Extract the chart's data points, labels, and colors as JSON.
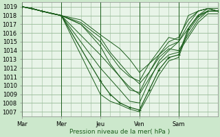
{
  "bg_color": "#cce8cc",
  "plot_bg_color": "#e8f4e8",
  "grid_color": "#99bb99",
  "line_color": "#1a5c1a",
  "ylabel_values": [
    1007,
    1008,
    1009,
    1010,
    1011,
    1012,
    1013,
    1014,
    1015,
    1016,
    1017,
    1018,
    1019
  ],
  "ylim": [
    1006.5,
    1019.5
  ],
  "xlabel": "Pression niveau de la mer( hPa )",
  "day_labels": [
    "Mar",
    "Mer",
    "Jeu",
    "Ven",
    "Sam"
  ],
  "day_positions": [
    0,
    24,
    48,
    72,
    96
  ],
  "total_hours": 120,
  "tick_fontsize": 6.0,
  "series": [
    {
      "points": [
        [
          0,
          1019.0
        ],
        [
          6,
          1018.8
        ],
        [
          12,
          1018.5
        ],
        [
          18,
          1018.2
        ],
        [
          24,
          1018.0
        ],
        [
          30,
          1017.5
        ],
        [
          36,
          1017.0
        ],
        [
          42,
          1016.0
        ],
        [
          48,
          1015.0
        ],
        [
          54,
          1013.5
        ],
        [
          60,
          1012.0
        ],
        [
          66,
          1011.0
        ],
        [
          72,
          1010.5
        ],
        [
          78,
          1012.5
        ],
        [
          84,
          1014.0
        ],
        [
          90,
          1015.5
        ],
        [
          96,
          1015.2
        ],
        [
          102,
          1018.0
        ],
        [
          108,
          1018.5
        ],
        [
          114,
          1018.8
        ],
        [
          120,
          1018.5
        ]
      ],
      "lw": 0.7,
      "marker": false
    },
    {
      "points": [
        [
          0,
          1019.0
        ],
        [
          6,
          1018.8
        ],
        [
          12,
          1018.5
        ],
        [
          24,
          1018.0
        ],
        [
          48,
          1013.5
        ],
        [
          60,
          1011.0
        ],
        [
          66,
          1009.5
        ],
        [
          72,
          1009.2
        ],
        [
          78,
          1011.5
        ],
        [
          84,
          1013.5
        ],
        [
          90,
          1015.0
        ],
        [
          96,
          1015.5
        ],
        [
          102,
          1017.5
        ],
        [
          108,
          1018.5
        ],
        [
          114,
          1018.8
        ],
        [
          120,
          1018.5
        ]
      ],
      "lw": 0.7,
      "marker": false
    },
    {
      "points": [
        [
          0,
          1019.0
        ],
        [
          6,
          1018.8
        ],
        [
          12,
          1018.5
        ],
        [
          24,
          1018.0
        ],
        [
          48,
          1012.0
        ],
        [
          60,
          1009.5
        ],
        [
          66,
          1008.2
        ],
        [
          72,
          1008.0
        ],
        [
          78,
          1010.5
        ],
        [
          84,
          1012.8
        ],
        [
          90,
          1014.0
        ],
        [
          96,
          1015.0
        ],
        [
          102,
          1017.0
        ],
        [
          108,
          1018.5
        ],
        [
          114,
          1018.8
        ],
        [
          120,
          1018.5
        ]
      ],
      "lw": 0.7,
      "marker": false
    },
    {
      "points": [
        [
          0,
          1019.0
        ],
        [
          6,
          1018.8
        ],
        [
          12,
          1018.5
        ],
        [
          24,
          1018.0
        ],
        [
          48,
          1010.5
        ],
        [
          54,
          1009.0
        ],
        [
          60,
          1008.0
        ],
        [
          66,
          1007.5
        ],
        [
          72,
          1007.2
        ],
        [
          78,
          1009.5
        ],
        [
          84,
          1011.8
        ],
        [
          90,
          1013.2
        ],
        [
          96,
          1013.5
        ],
        [
          102,
          1016.5
        ],
        [
          108,
          1018.0
        ],
        [
          114,
          1018.5
        ],
        [
          120,
          1018.5
        ]
      ],
      "lw": 0.9,
      "marker": true
    },
    {
      "points": [
        [
          0,
          1019.0
        ],
        [
          6,
          1018.8
        ],
        [
          12,
          1018.5
        ],
        [
          24,
          1018.0
        ],
        [
          48,
          1009.0
        ],
        [
          54,
          1008.2
        ],
        [
          60,
          1007.8
        ],
        [
          66,
          1007.3
        ],
        [
          72,
          1007.0
        ],
        [
          78,
          1009.0
        ],
        [
          84,
          1011.2
        ],
        [
          90,
          1012.8
        ],
        [
          96,
          1013.2
        ],
        [
          102,
          1016.2
        ],
        [
          108,
          1017.8
        ],
        [
          114,
          1018.5
        ],
        [
          120,
          1018.5
        ]
      ],
      "lw": 0.7,
      "marker": false
    },
    {
      "points": [
        [
          0,
          1019.0
        ],
        [
          6,
          1018.8
        ],
        [
          12,
          1018.5
        ],
        [
          24,
          1018.0
        ],
        [
          36,
          1017.0
        ],
        [
          48,
          1014.5
        ],
        [
          54,
          1012.5
        ],
        [
          60,
          1011.0
        ],
        [
          66,
          1009.8
        ],
        [
          72,
          1009.0
        ],
        [
          78,
          1010.8
        ],
        [
          84,
          1012.5
        ],
        [
          90,
          1013.5
        ],
        [
          96,
          1013.8
        ],
        [
          102,
          1015.5
        ],
        [
          108,
          1017.2
        ],
        [
          114,
          1018.2
        ],
        [
          120,
          1018.2
        ]
      ],
      "lw": 0.7,
      "marker": false
    },
    {
      "points": [
        [
          0,
          1019.0
        ],
        [
          6,
          1018.8
        ],
        [
          12,
          1018.5
        ],
        [
          24,
          1018.0
        ],
        [
          36,
          1017.2
        ],
        [
          48,
          1015.5
        ],
        [
          54,
          1013.8
        ],
        [
          60,
          1012.5
        ],
        [
          66,
          1011.2
        ],
        [
          72,
          1010.2
        ],
        [
          78,
          1011.5
        ],
        [
          84,
          1013.2
        ],
        [
          90,
          1014.2
        ],
        [
          96,
          1014.0
        ],
        [
          102,
          1015.8
        ],
        [
          108,
          1017.5
        ],
        [
          114,
          1018.5
        ],
        [
          120,
          1018.5
        ]
      ],
      "lw": 0.7,
      "marker": false
    },
    {
      "points": [
        [
          0,
          1019.0
        ],
        [
          12,
          1018.5
        ],
        [
          24,
          1018.0
        ],
        [
          36,
          1017.5
        ],
        [
          48,
          1015.8
        ],
        [
          60,
          1014.2
        ],
        [
          66,
          1013.0
        ],
        [
          72,
          1011.5
        ],
        [
          78,
          1012.5
        ],
        [
          84,
          1013.5
        ],
        [
          90,
          1014.5
        ],
        [
          96,
          1015.0
        ],
        [
          102,
          1016.5
        ],
        [
          108,
          1018.0
        ],
        [
          114,
          1018.8
        ],
        [
          120,
          1018.8
        ]
      ],
      "lw": 0.7,
      "marker": false
    }
  ]
}
